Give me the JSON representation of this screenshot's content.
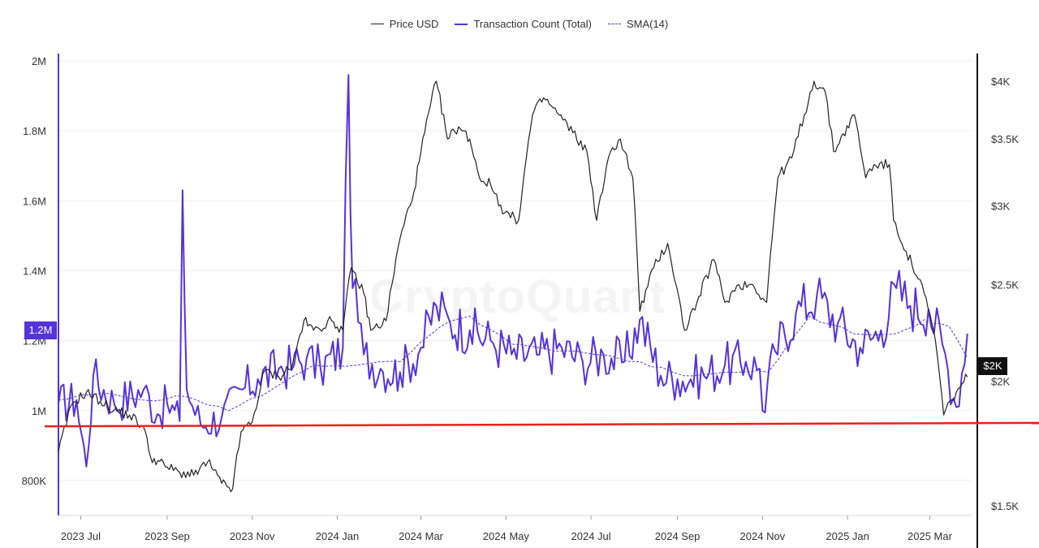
{
  "chart_data": {
    "type": "line",
    "legend": {
      "placement": "top-center",
      "items": [
        {
          "label": "Price USD",
          "color": "#222222",
          "style": "solid"
        },
        {
          "label": "Transaction Count (Total)",
          "color": "#5533dd",
          "style": "solid"
        },
        {
          "label": "SMA(14)",
          "color": "#5533dd",
          "style": "dashed"
        }
      ]
    },
    "watermark": "CryptoQuant",
    "x_axis": {
      "type": "date",
      "range": [
        "2023-06-15",
        "2025-03-31"
      ],
      "ticks": [
        {
          "date": "2023-07-01",
          "label": "2023 Jul"
        },
        {
          "date": "2023-09-01",
          "label": "2023 Sep"
        },
        {
          "date": "2023-11-01",
          "label": "2023 Nov"
        },
        {
          "date": "2024-01-01",
          "label": "2024 Jan"
        },
        {
          "date": "2024-03-01",
          "label": "2024 Mar"
        },
        {
          "date": "2024-05-01",
          "label": "2024 May"
        },
        {
          "date": "2024-07-01",
          "label": "2024 Jul"
        },
        {
          "date": "2024-09-01",
          "label": "2024 Sep"
        },
        {
          "date": "2024-11-01",
          "label": "2024 Nov"
        },
        {
          "date": "2025-01-01",
          "label": "2025 Jan"
        },
        {
          "date": "2025-03-01",
          "label": "2025 Mar"
        }
      ]
    },
    "y_left": {
      "series": "Transaction Count (Total)",
      "range": [
        700000,
        2000000
      ],
      "ticks": [
        {
          "value": 800000,
          "label": "800K"
        },
        {
          "value": 1000000,
          "label": "1M"
        },
        {
          "value": 1200000,
          "label": "1.2M"
        },
        {
          "value": 1400000,
          "label": "1.4M"
        },
        {
          "value": 1600000,
          "label": "1.6M"
        },
        {
          "value": 1800000,
          "label": "1.8M"
        },
        {
          "value": 2000000,
          "label": "2M"
        }
      ],
      "current_value_badge": "1.2M"
    },
    "y_right": {
      "series": "Price USD",
      "scale": "log",
      "range": [
        1500,
        4200
      ],
      "ticks": [
        {
          "value": 1500,
          "label": "$1.5K"
        },
        {
          "value": 2000,
          "label": "$2K"
        },
        {
          "value": 2500,
          "label": "$2.5K"
        },
        {
          "value": 3000,
          "label": "$3K"
        },
        {
          "value": 3500,
          "label": "$3.5K"
        },
        {
          "value": 4000,
          "label": "$4K"
        }
      ],
      "current_value_badge": "$2K"
    },
    "grid": {
      "horizontal": true,
      "vertical": false
    },
    "annotations": [
      {
        "type": "horizontal_line",
        "color": "#e8221b",
        "from": {
          "date": "2023-06-10",
          "tx": 955000
        },
        "to": {
          "date": "2025-04-15",
          "tx": 965000
        }
      }
    ],
    "series": [
      {
        "name": "Price USD",
        "axis": "right",
        "color": "#222222",
        "points": [
          [
            "2023-06-15",
            1700
          ],
          [
            "2023-06-25",
            1900
          ],
          [
            "2023-07-05",
            1950
          ],
          [
            "2023-07-15",
            1910
          ],
          [
            "2023-07-25",
            1870
          ],
          [
            "2023-08-05",
            1850
          ],
          [
            "2023-08-15",
            1800
          ],
          [
            "2023-08-20",
            1680
          ],
          [
            "2023-09-01",
            1640
          ],
          [
            "2023-09-10",
            1620
          ],
          [
            "2023-09-20",
            1610
          ],
          [
            "2023-09-30",
            1660
          ],
          [
            "2023-10-10",
            1580
          ],
          [
            "2023-10-18",
            1560
          ],
          [
            "2023-10-24",
            1780
          ],
          [
            "2023-11-01",
            1820
          ],
          [
            "2023-11-10",
            2050
          ],
          [
            "2023-11-20",
            2020
          ],
          [
            "2023-11-30",
            2080
          ],
          [
            "2023-12-08",
            2300
          ],
          [
            "2023-12-15",
            2250
          ],
          [
            "2023-12-28",
            2300
          ],
          [
            "2024-01-05",
            2250
          ],
          [
            "2024-01-11",
            2600
          ],
          [
            "2024-01-20",
            2450
          ],
          [
            "2024-01-25",
            2250
          ],
          [
            "2024-02-05",
            2300
          ],
          [
            "2024-02-15",
            2780
          ],
          [
            "2024-02-25",
            3100
          ],
          [
            "2024-03-01",
            3400
          ],
          [
            "2024-03-12",
            4000
          ],
          [
            "2024-03-20",
            3500
          ],
          [
            "2024-03-28",
            3600
          ],
          [
            "2024-04-05",
            3500
          ],
          [
            "2024-04-12",
            3200
          ],
          [
            "2024-04-20",
            3150
          ],
          [
            "2024-04-30",
            2950
          ],
          [
            "2024-05-10",
            2900
          ],
          [
            "2024-05-20",
            3700
          ],
          [
            "2024-05-28",
            3850
          ],
          [
            "2024-06-08",
            3700
          ],
          [
            "2024-06-18",
            3550
          ],
          [
            "2024-06-28",
            3400
          ],
          [
            "2024-07-05",
            2900
          ],
          [
            "2024-07-15",
            3400
          ],
          [
            "2024-07-22",
            3500
          ],
          [
            "2024-07-31",
            3200
          ],
          [
            "2024-08-05",
            2350
          ],
          [
            "2024-08-15",
            2600
          ],
          [
            "2024-08-25",
            2750
          ],
          [
            "2024-09-06",
            2250
          ],
          [
            "2024-09-15",
            2400
          ],
          [
            "2024-09-27",
            2650
          ],
          [
            "2024-10-05",
            2400
          ],
          [
            "2024-10-15",
            2500
          ],
          [
            "2024-10-25",
            2500
          ],
          [
            "2024-11-04",
            2400
          ],
          [
            "2024-11-12",
            3200
          ],
          [
            "2024-11-22",
            3350
          ],
          [
            "2024-12-01",
            3700
          ],
          [
            "2024-12-08",
            4000
          ],
          [
            "2024-12-16",
            3900
          ],
          [
            "2024-12-22",
            3400
          ],
          [
            "2025-01-06",
            3700
          ],
          [
            "2025-01-14",
            3200
          ],
          [
            "2025-01-20",
            3300
          ],
          [
            "2025-01-31",
            3300
          ],
          [
            "2025-02-03",
            2900
          ],
          [
            "2025-02-12",
            2700
          ],
          [
            "2025-02-25",
            2450
          ],
          [
            "2025-03-05",
            2200
          ],
          [
            "2025-03-11",
            1850
          ],
          [
            "2025-03-20",
            1950
          ],
          [
            "2025-03-28",
            2020
          ]
        ]
      },
      {
        "name": "Transaction Count (Total)",
        "axis": "left",
        "color": "#5533dd",
        "points": [
          [
            "2023-06-15",
            1020000
          ],
          [
            "2023-06-28",
            1030000
          ],
          [
            "2023-07-05",
            840000
          ],
          [
            "2023-07-10",
            1100000
          ],
          [
            "2023-07-25",
            1020000
          ],
          [
            "2023-08-15",
            1060000
          ],
          [
            "2023-08-25",
            990000
          ],
          [
            "2023-09-01",
            1020000
          ],
          [
            "2023-09-10",
            970000
          ],
          [
            "2023-09-12",
            1630000
          ],
          [
            "2023-09-15",
            1060000
          ],
          [
            "2023-09-25",
            960000
          ],
          [
            "2023-10-10",
            980000
          ],
          [
            "2023-10-25",
            1060000
          ],
          [
            "2023-11-05",
            1090000
          ],
          [
            "2023-11-20",
            1120000
          ],
          [
            "2023-12-01",
            1130000
          ],
          [
            "2023-12-10",
            1150000
          ],
          [
            "2023-12-20",
            1120000
          ],
          [
            "2024-01-05",
            1180000
          ],
          [
            "2024-01-09",
            1960000
          ],
          [
            "2024-01-12",
            1350000
          ],
          [
            "2024-01-20",
            1160000
          ],
          [
            "2024-02-01",
            1120000
          ],
          [
            "2024-02-15",
            1110000
          ],
          [
            "2024-03-01",
            1180000
          ],
          [
            "2024-03-12",
            1300000
          ],
          [
            "2024-03-22",
            1250000
          ],
          [
            "2024-04-05",
            1230000
          ],
          [
            "2024-04-20",
            1200000
          ],
          [
            "2024-05-05",
            1160000
          ],
          [
            "2024-05-25",
            1160000
          ],
          [
            "2024-06-10",
            1180000
          ],
          [
            "2024-06-25",
            1140000
          ],
          [
            "2024-07-10",
            1160000
          ],
          [
            "2024-07-25",
            1140000
          ],
          [
            "2024-08-05",
            1260000
          ],
          [
            "2024-08-20",
            1100000
          ],
          [
            "2024-09-01",
            1090000
          ],
          [
            "2024-09-20",
            1100000
          ],
          [
            "2024-10-05",
            1130000
          ],
          [
            "2024-10-20",
            1140000
          ],
          [
            "2024-10-30",
            1120000
          ],
          [
            "2024-11-01",
            1000000
          ],
          [
            "2024-11-10",
            1170000
          ],
          [
            "2024-11-25",
            1280000
          ],
          [
            "2024-12-10",
            1330000
          ],
          [
            "2024-12-25",
            1250000
          ],
          [
            "2025-01-10",
            1180000
          ],
          [
            "2025-01-25",
            1230000
          ],
          [
            "2025-02-05",
            1350000
          ],
          [
            "2025-02-15",
            1300000
          ],
          [
            "2025-02-28",
            1290000
          ],
          [
            "2025-03-10",
            1190000
          ],
          [
            "2025-03-20",
            1010000
          ],
          [
            "2025-03-28",
            1220000
          ]
        ]
      },
      {
        "name": "SMA(14)",
        "axis": "left",
        "color": "#5533dd",
        "style": "dashed",
        "points": [
          [
            "2023-06-15",
            1030000
          ],
          [
            "2023-07-15",
            1050000
          ],
          [
            "2023-08-15",
            1030000
          ],
          [
            "2023-09-15",
            1040000
          ],
          [
            "2023-10-15",
            1000000
          ],
          [
            "2023-11-15",
            1060000
          ],
          [
            "2023-12-15",
            1130000
          ],
          [
            "2024-01-15",
            1130000
          ],
          [
            "2024-02-15",
            1140000
          ],
          [
            "2024-03-15",
            1240000
          ],
          [
            "2024-04-05",
            1270000
          ],
          [
            "2024-05-05",
            1190000
          ],
          [
            "2024-06-05",
            1170000
          ],
          [
            "2024-07-05",
            1160000
          ],
          [
            "2024-08-05",
            1140000
          ],
          [
            "2024-09-05",
            1100000
          ],
          [
            "2024-10-05",
            1110000
          ],
          [
            "2024-11-05",
            1110000
          ],
          [
            "2024-12-05",
            1270000
          ],
          [
            "2025-01-05",
            1220000
          ],
          [
            "2025-02-05",
            1220000
          ],
          [
            "2025-02-25",
            1260000
          ],
          [
            "2025-03-15",
            1240000
          ],
          [
            "2025-03-28",
            1150000
          ]
        ]
      }
    ]
  }
}
